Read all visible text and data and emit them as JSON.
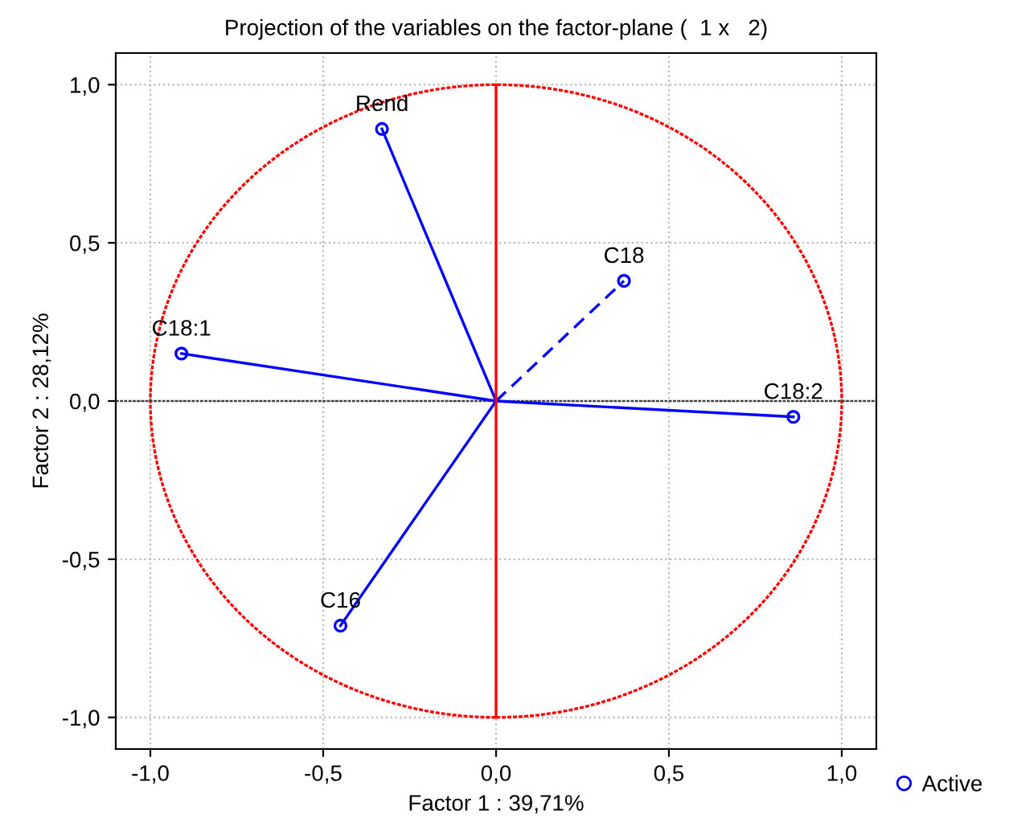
{
  "chart_data": {
    "type": "scatter",
    "title": "Projection of the variables on the factor-plane (  1 x   2)",
    "xlabel": "Factor 1 : 39,71%",
    "ylabel": "Factor 2 : 28,12%",
    "xlim": [
      -1.1,
      1.1
    ],
    "ylim": [
      -1.1,
      1.1
    ],
    "xticks": [
      {
        "value": -1.0,
        "label": "-1,0"
      },
      {
        "value": -0.5,
        "label": "-0,5"
      },
      {
        "value": 0.0,
        "label": "0,0"
      },
      {
        "value": 0.5,
        "label": "0,5"
      },
      {
        "value": 1.0,
        "label": "1,0"
      }
    ],
    "yticks": [
      {
        "value": -1.0,
        "label": "-1,0"
      },
      {
        "value": -0.5,
        "label": "-0,5"
      },
      {
        "value": 0.0,
        "label": "0,0"
      },
      {
        "value": 0.5,
        "label": "0,5"
      },
      {
        "value": 1.0,
        "label": "1,0"
      }
    ],
    "grid": true,
    "legend": "bottom right",
    "series": [
      {
        "name": "Active",
        "color": "#0000ff",
        "marker": "circle",
        "x": [
          -0.33,
          0.37,
          -0.91,
          0.86,
          -0.45
        ],
        "values": [
          0.86,
          0.38,
          0.15,
          -0.05,
          -0.71
        ]
      },
      {
        "type": "line",
        "color": "#0000ff",
        "marker": "none",
        "line_style": "solid",
        "x": [
          -0.33,
          0,
          -0.45
        ],
        "values": [
          0.86,
          0,
          -0.71
        ]
      },
      {
        "type": "line",
        "color": "#0000ff",
        "marker": "none",
        "line_style": "dashed",
        "x": [
          0,
          0.37
        ],
        "values": [
          0,
          0.38
        ]
      },
      {
        "type": "line",
        "color": "#0000ff",
        "marker": "none",
        "line_style": "solid",
        "x": [
          -0.91,
          0,
          0.86
        ],
        "values": [
          0.15,
          0,
          -0.05
        ]
      },
      {
        "type": "line",
        "color": "#ff0000",
        "marker": "none",
        "line_style": "solid",
        "x": [
          0,
          0
        ],
        "values": [
          -1,
          1
        ]
      }
    ],
    "ref_lines": [
      {
        "axis": "y",
        "value": 0,
        "color": "#404040",
        "line_style": "dotted"
      }
    ],
    "annotations": [
      {
        "text": "Rend",
        "x": -0.33,
        "y": 0.86
      },
      {
        "text": "C18",
        "x": 0.37,
        "y": 0.38
      },
      {
        "text": "C18:1",
        "x": -0.91,
        "y": 0.15
      },
      {
        "text": "C18:2",
        "x": 0.86,
        "y": -0.05
      },
      {
        "text": "C16",
        "x": -0.45,
        "y": -0.71
      }
    ]
  }
}
